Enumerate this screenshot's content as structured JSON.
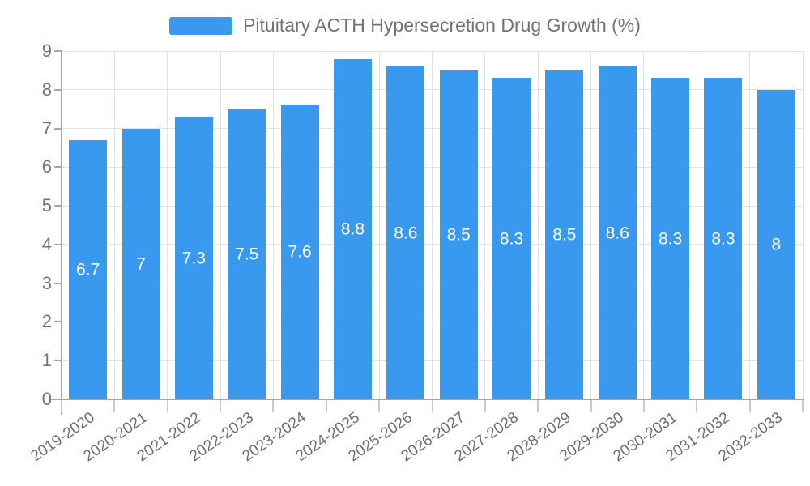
{
  "legend": {
    "label": "Pituitary ACTH Hypersecretion Drug Growth (%)"
  },
  "chart_data": {
    "type": "bar",
    "title": "Pituitary ACTH Hypersecretion Drug Growth (%)",
    "categories": [
      "2019-2020",
      "2020-2021",
      "2021-2022",
      "2022-2023",
      "2023-2024",
      "2024-2025",
      "2025-2026",
      "2026-2027",
      "2027-2028",
      "2028-2029",
      "2029-2030",
      "2030-2031",
      "2031-2032",
      "2032-2033"
    ],
    "values": [
      6.7,
      7,
      7.3,
      7.5,
      7.6,
      8.8,
      8.6,
      8.5,
      8.3,
      8.5,
      8.6,
      8.3,
      8.3,
      8
    ],
    "xlabel": "",
    "ylabel": "",
    "ylim": [
      0,
      9
    ],
    "ytick_step": 1,
    "grid": true,
    "legend_position": "top",
    "bar_color": "#3899ee",
    "bar_label_color": "#ffffff"
  }
}
